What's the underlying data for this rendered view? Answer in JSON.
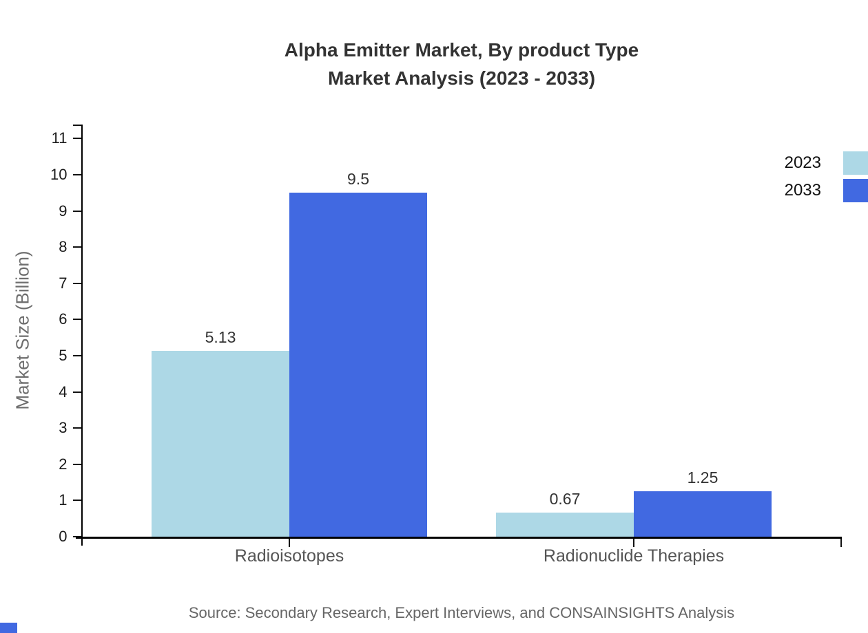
{
  "title": {
    "line1": "Alpha Emitter Market, By product Type",
    "line2": "Market Analysis (2023 - 2033)"
  },
  "source": "Source: Secondary Research, Expert Interviews, and CONSAINSIGHTS Analysis",
  "colors": {
    "series_2023": "#ADD8E6",
    "series_2033": "#4169E1",
    "axis": "#000000",
    "title_text": "#333333",
    "category_text": "#555555",
    "muted_text": "#666666",
    "brand_mark": "#4169E1"
  },
  "chart_data": {
    "type": "bar",
    "categories": [
      "Radioisotopes",
      "Radionuclide Therapies"
    ],
    "series": [
      {
        "name": "2023",
        "color": "#ADD8E6",
        "values": [
          5.13,
          0.67
        ],
        "labels": [
          "5.13",
          "0.67"
        ]
      },
      {
        "name": "2033",
        "color": "#4169E1",
        "values": [
          9.5,
          1.25
        ],
        "labels": [
          "9.5",
          "1.25"
        ]
      }
    ],
    "title": "Alpha Emitter Market, By product Type Market Analysis (2023 - 2033)",
    "xlabel": "",
    "ylabel": "Market Size (Billion)",
    "ylim": [
      0,
      11
    ],
    "ytick_step": 1,
    "grid": false,
    "legend_position": "top-right"
  }
}
